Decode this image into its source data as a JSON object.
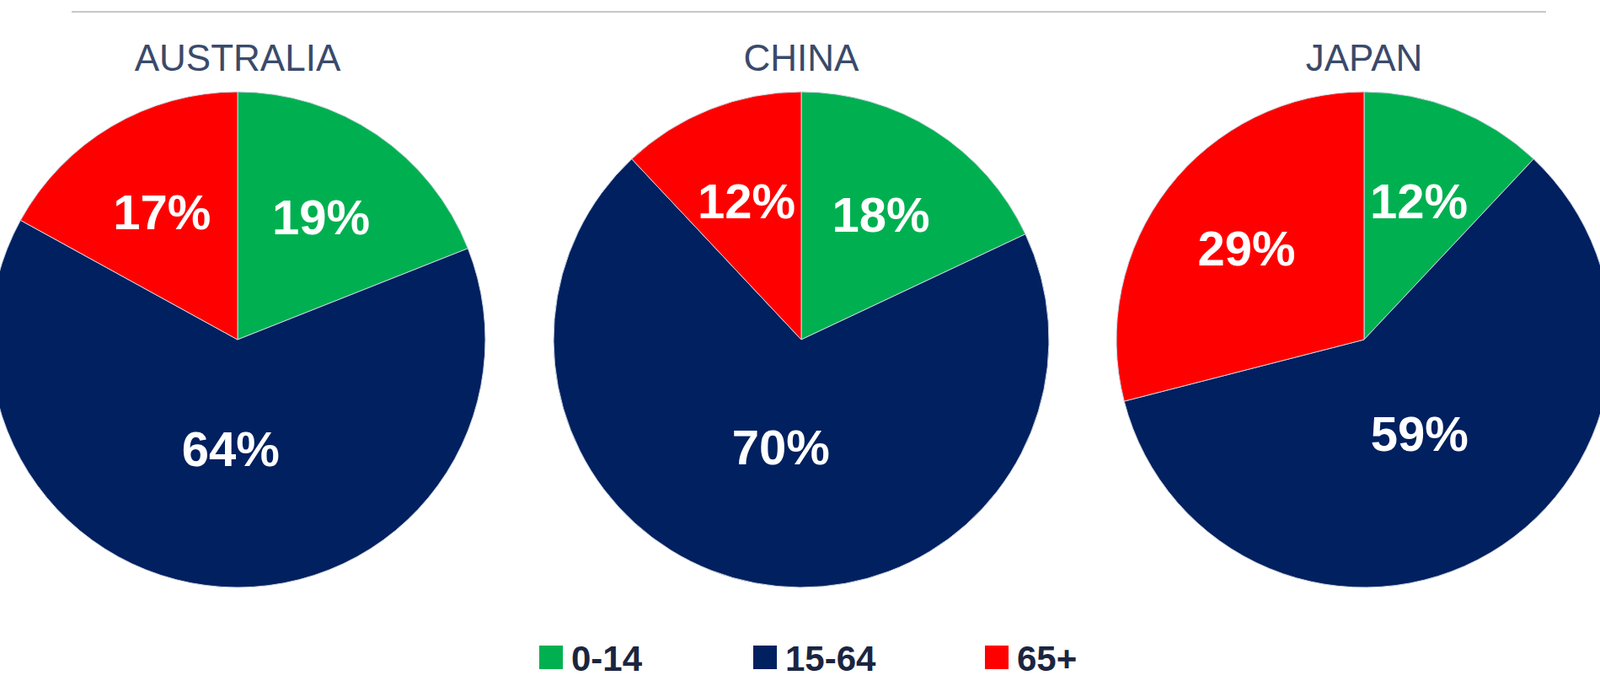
{
  "chart_data": [
    {
      "type": "pie",
      "title": "AUSTRALIA",
      "categories": [
        "0-14",
        "15-64",
        "65+"
      ],
      "values": [
        19,
        64,
        17
      ],
      "value_labels": [
        "19%",
        "64%",
        "17%"
      ],
      "colors": [
        "#00b050",
        "#002060",
        "#ff0000"
      ],
      "data_labels": true,
      "legend": "bottom"
    },
    {
      "type": "pie",
      "title": "CHINA",
      "categories": [
        "0-14",
        "15-64",
        "65+"
      ],
      "values": [
        18,
        70,
        12
      ],
      "value_labels": [
        "18%",
        "70%",
        "12%"
      ],
      "colors": [
        "#00b050",
        "#002060",
        "#ff0000"
      ],
      "data_labels": true,
      "legend": "bottom"
    },
    {
      "type": "pie",
      "title": "JAPAN",
      "categories": [
        "0-14",
        "15-64",
        "65+"
      ],
      "values": [
        12,
        59,
        29
      ],
      "value_labels": [
        "12%",
        "59%",
        "29%"
      ],
      "colors": [
        "#00b050",
        "#002060",
        "#ff0000"
      ],
      "data_labels": true,
      "legend": "bottom"
    }
  ]
}
